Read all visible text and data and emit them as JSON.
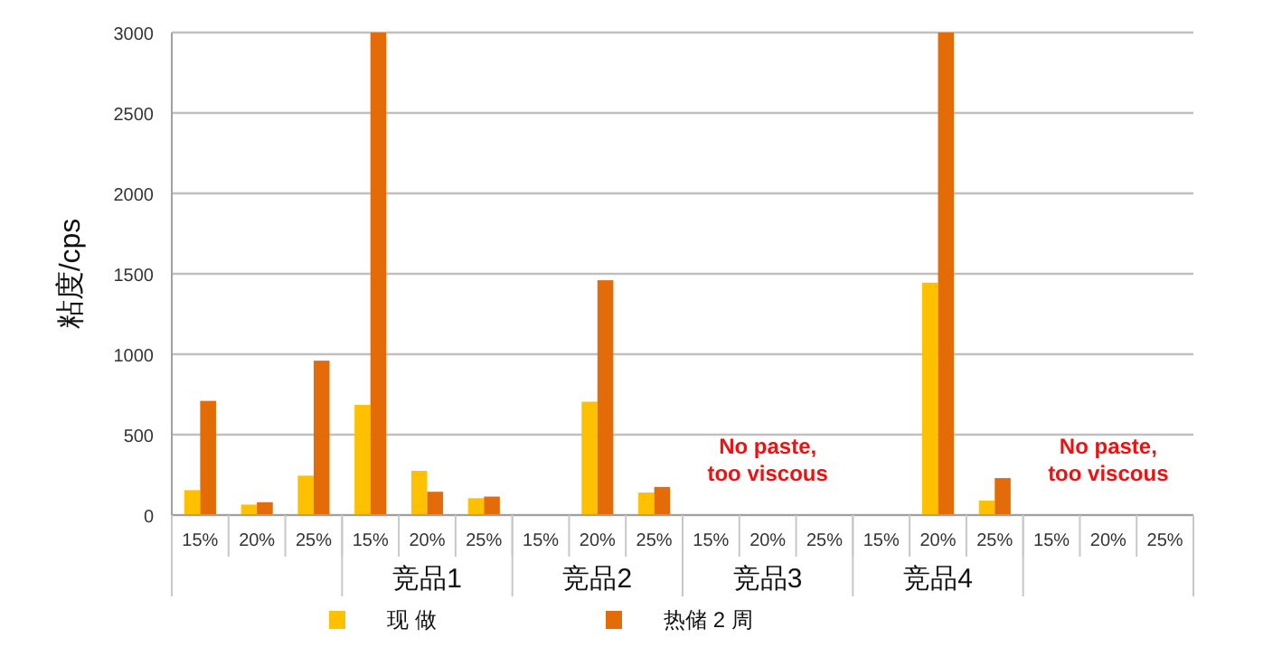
{
  "chart_data": {
    "type": "bar",
    "ylabel": "粘度/cps",
    "categories": [
      "15%",
      "20%",
      "25%",
      "15%",
      "20%",
      "25%",
      "15%",
      "20%",
      "25%",
      "15%",
      "20%",
      "25%",
      "15%",
      "20%",
      "25%",
      "15%",
      "20%",
      "25%"
    ],
    "series": [
      {
        "name": "现 做",
        "color": "#ffc000",
        "values": [
          155,
          65,
          245,
          685,
          275,
          105,
          null,
          705,
          140,
          null,
          null,
          null,
          null,
          1445,
          90,
          null,
          null,
          null
        ]
      },
      {
        "name": "热储 2 周",
        "color": "#e36c09",
        "values": [
          710,
          80,
          960,
          3000,
          145,
          115,
          null,
          1460,
          175,
          null,
          null,
          null,
          null,
          3000,
          230,
          null,
          null,
          null
        ]
      }
    ],
    "ylim": [
      0,
      3000
    ],
    "yticks": [
      0,
      500,
      1000,
      1500,
      2000,
      2500,
      3000
    ],
    "grid": "y",
    "legend": "bottom",
    "annotations": [
      "竞品1",
      "竞品2",
      "竞品3",
      "竞品4",
      "No paste, too viscous",
      "No paste, too viscous"
    ]
  }
}
